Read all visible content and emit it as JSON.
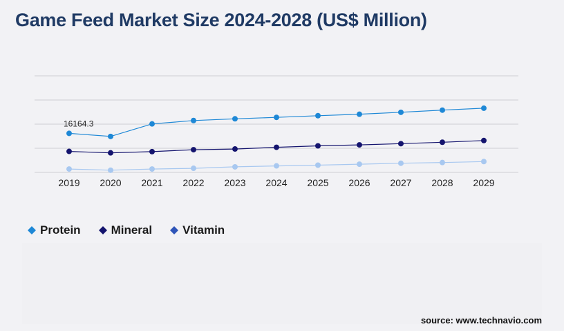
{
  "header": {
    "title": "Game Feed Market Size 2024-2028 (US$ Million)"
  },
  "chart_data": {
    "type": "line",
    "title": "Game Feed Market Size 2024-2028 (US$ Million)",
    "xlabel": "",
    "ylabel": "",
    "categories": [
      "2019",
      "2020",
      "2021",
      "2022",
      "2023",
      "2024",
      "2025",
      "2026",
      "2027",
      "2028",
      "2029"
    ],
    "ylim": [
      0,
      40000
    ],
    "grid": true,
    "legend_position": "bottom-left",
    "series": [
      {
        "name": "Protein",
        "color": "#1e88d6",
        "values": [
          16164.3,
          14900,
          20100,
          21500,
          22200,
          22800,
          23500,
          24100,
          24900,
          25800,
          26600
        ]
      },
      {
        "name": "Mineral",
        "color": "#14146e",
        "values": [
          8700,
          8100,
          8600,
          9400,
          9700,
          10400,
          11000,
          11400,
          11900,
          12500,
          13200
        ]
      },
      {
        "name": "Vitamin",
        "color": "#a8c8f0",
        "values": [
          1400,
          900,
          1400,
          1700,
          2300,
          2700,
          3000,
          3400,
          3800,
          4100,
          4500
        ]
      }
    ],
    "annotations": [
      {
        "series": "Protein",
        "index": 0,
        "text": "16164.3"
      }
    ]
  },
  "legend": {
    "items": [
      {
        "label": "Protein",
        "color": "#1e88d6"
      },
      {
        "label": "Mineral",
        "color": "#14146e"
      },
      {
        "label": "Vitamin",
        "color": "#2f55b8"
      }
    ]
  },
  "footer": {
    "source": "source: www.technavio.com"
  }
}
